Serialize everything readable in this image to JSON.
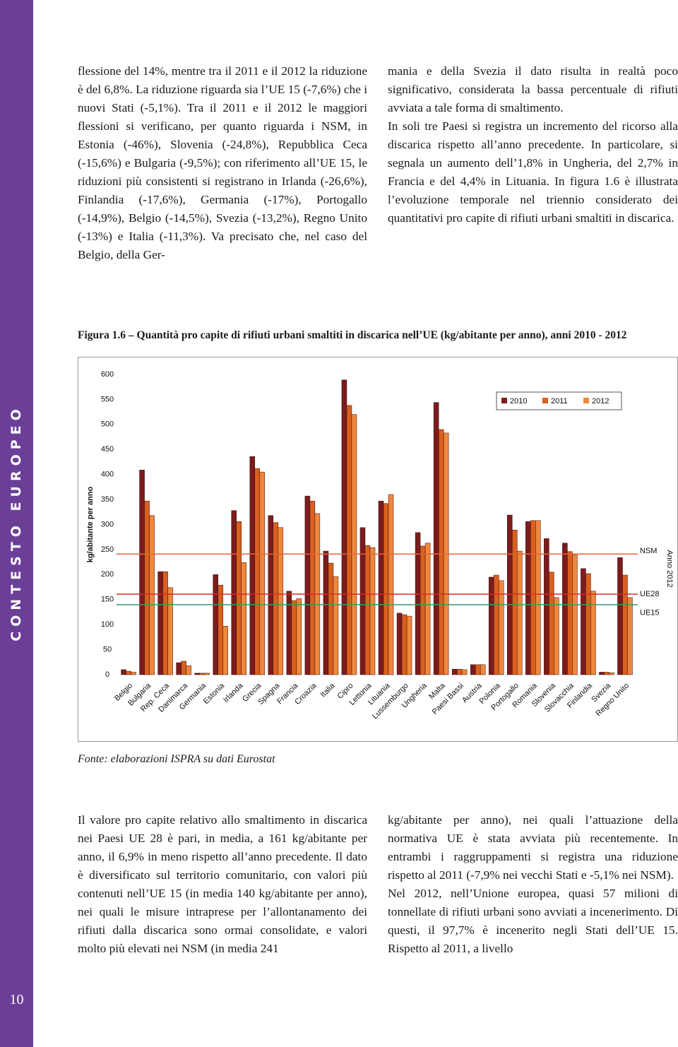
{
  "sidebar": {
    "section": "CONTESTO EUROPEO",
    "page_number": "10"
  },
  "top_columns": [
    [
      "flessione del 14%, mentre tra il 2011 e il 2012 la riduzione è del 6,8%. La riduzione riguarda sia l’UE 15 (-7,6%) che i nuovi Stati (-5,1%). Tra il 2011 e il 2012 le maggiori flessioni si verificano, per quanto riguarda i NSM, in Estonia (-46%), Slovenia (-24,8%), Repubblica Ceca (-15,6%) e Bulgaria (-9,5%); con riferimento all’UE 15, le riduzioni più consistenti si registrano in Irlanda (-26,6%), Finlandia (-17,6%), Germania (-17%), Portogallo (-14,9%), Belgio (-14,5%), Svezia (-13,2%), Regno Unito (-13%) e Italia (-11,3%). Va precisato che, nel caso del Belgio, della Ger-"
    ],
    [
      "mania e della Svezia il dato risulta in realtà poco significativo, considerata la bassa percentuale di rifiuti avviata a tale forma di smaltimento.",
      "In soli tre Paesi si registra un incremento del ricorso alla discarica rispetto all’anno precedente. In particolare, si segnala un aumento dell’1,8% in Ungheria, del 2,7% in Francia e del 4,4% in Lituania. In figura 1.6 è illustrata l’evoluzione temporale nel triennio considerato dei quantitativi pro capite di rifiuti urbani smaltiti in discarica."
    ]
  ],
  "figure": {
    "caption": "Figura 1.6 – Quantità pro capite di rifiuti urbani smaltiti in discarica nell’UE (kg/abitante per anno), anni 2010 - 2012",
    "source": "Fonte: elaborazioni ISPRA su dati Eurostat"
  },
  "chart_data": {
    "type": "bar",
    "y_label": "kg/abitante per anno",
    "annotation": "Anno 2012",
    "categories": [
      "Belgio",
      "Bulgaria",
      "Rep. Ceca",
      "Danimarca",
      "Germania",
      "Estonia",
      "Irlanda",
      "Grecia",
      "Spagna",
      "Francia",
      "Croazia",
      "Italia",
      "Cipro",
      "Lettonia",
      "Lituania",
      "Lussemburgo",
      "Ungheria",
      "Malta",
      "Paesi Bassi",
      "Austria",
      "Polonia",
      "Portogallo",
      "Romania",
      "Slovenia",
      "Slovacchia",
      "Finlandia",
      "Svezia",
      "Regno Unito"
    ],
    "series": [
      {
        "name": "2010",
        "color": "#7b1c1c",
        "values": [
          10,
          409,
          206,
          24,
          3,
          200,
          328,
          436,
          318,
          167,
          357,
          247,
          589,
          294,
          347,
          123,
          284,
          544,
          11,
          20,
          195,
          319,
          306,
          272,
          263,
          212,
          5,
          234
        ]
      },
      {
        "name": "2011",
        "color": "#d9601e",
        "values": [
          7,
          347,
          206,
          27,
          3,
          179,
          306,
          412,
          304,
          148,
          347,
          223,
          538,
          258,
          342,
          120,
          257,
          490,
          11,
          20,
          199,
          289,
          308,
          205,
          246,
          202,
          5,
          199
        ]
      },
      {
        "name": "2012",
        "color": "#f0883c",
        "values": [
          5,
          318,
          174,
          18,
          3,
          97,
          224,
          405,
          294,
          152,
          322,
          196,
          520,
          254,
          360,
          117,
          263,
          483,
          10,
          20,
          188,
          247,
          308,
          154,
          240,
          167,
          4,
          154
        ]
      }
    ],
    "reference_lines": [
      {
        "name": "NSM",
        "value": 241,
        "color": "#e0643a"
      },
      {
        "name": "UE28",
        "value": 161,
        "color": "#d82a2a"
      },
      {
        "name": "UE15",
        "value": 140,
        "color": "#3a9a6a"
      }
    ],
    "ylim": [
      0,
      600
    ],
    "yticks": [
      0,
      50,
      100,
      150,
      200,
      250,
      300,
      350,
      400,
      450,
      500,
      550,
      600
    ]
  },
  "bottom_columns": [
    [
      "Il valore pro capite relativo allo smaltimento in discarica nei Paesi UE 28 è pari, in media, a 161 kg/abitante per anno, il 6,9% in meno rispetto all’anno precedente. Il dato è diversificato sul territorio comunitario, con valori più contenuti nell’UE 15 (in media 140 kg/abitante per anno), nei quali le misure intraprese per l’allontanamento dei rifiuti dalla discarica sono ormai consolidate, e valori molto più elevati nei NSM (in media 241"
    ],
    [
      "kg/abitante per anno), nei quali l’attuazione della normativa UE è stata avviata più recentemente. In entrambi i raggruppamenti si registra una riduzione rispetto al 2011 (-7,9% nei vecchi Stati e -5,1% nei NSM).",
      "Nel 2012, nell’Unione europea, quasi 57 milioni di tonnellate di rifiuti urbani sono avviati a incenerimento. Di questi, il 97,7% è incenerito negli Stati dell’UE 15. Rispetto al 2011, a livello"
    ]
  ]
}
